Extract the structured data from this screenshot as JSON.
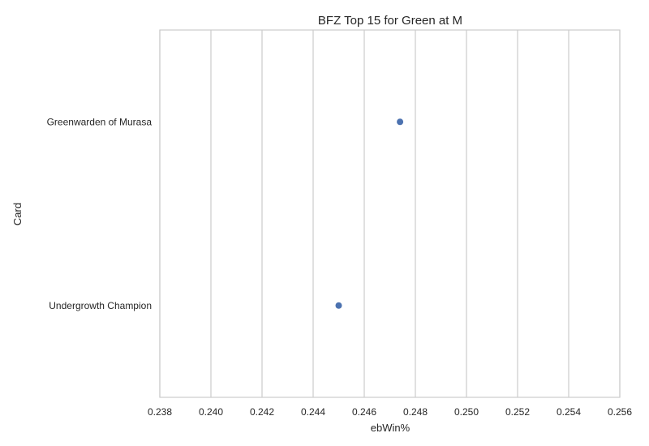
{
  "chart_data": {
    "type": "scatter",
    "title": "BFZ Top 15 for Green at M",
    "xlabel": "ebWin%",
    "ylabel": "Card",
    "xlim": [
      0.238,
      0.256
    ],
    "xticks": [
      "0.238",
      "0.240",
      "0.242",
      "0.244",
      "0.246",
      "0.248",
      "0.250",
      "0.252",
      "0.254",
      "0.256"
    ],
    "categories": [
      "Greenwarden of Murasa",
      "Undergrowth Champion"
    ],
    "values": [
      0.2474,
      0.245
    ],
    "grid": "vertical",
    "point_color": "#4c72b0"
  }
}
